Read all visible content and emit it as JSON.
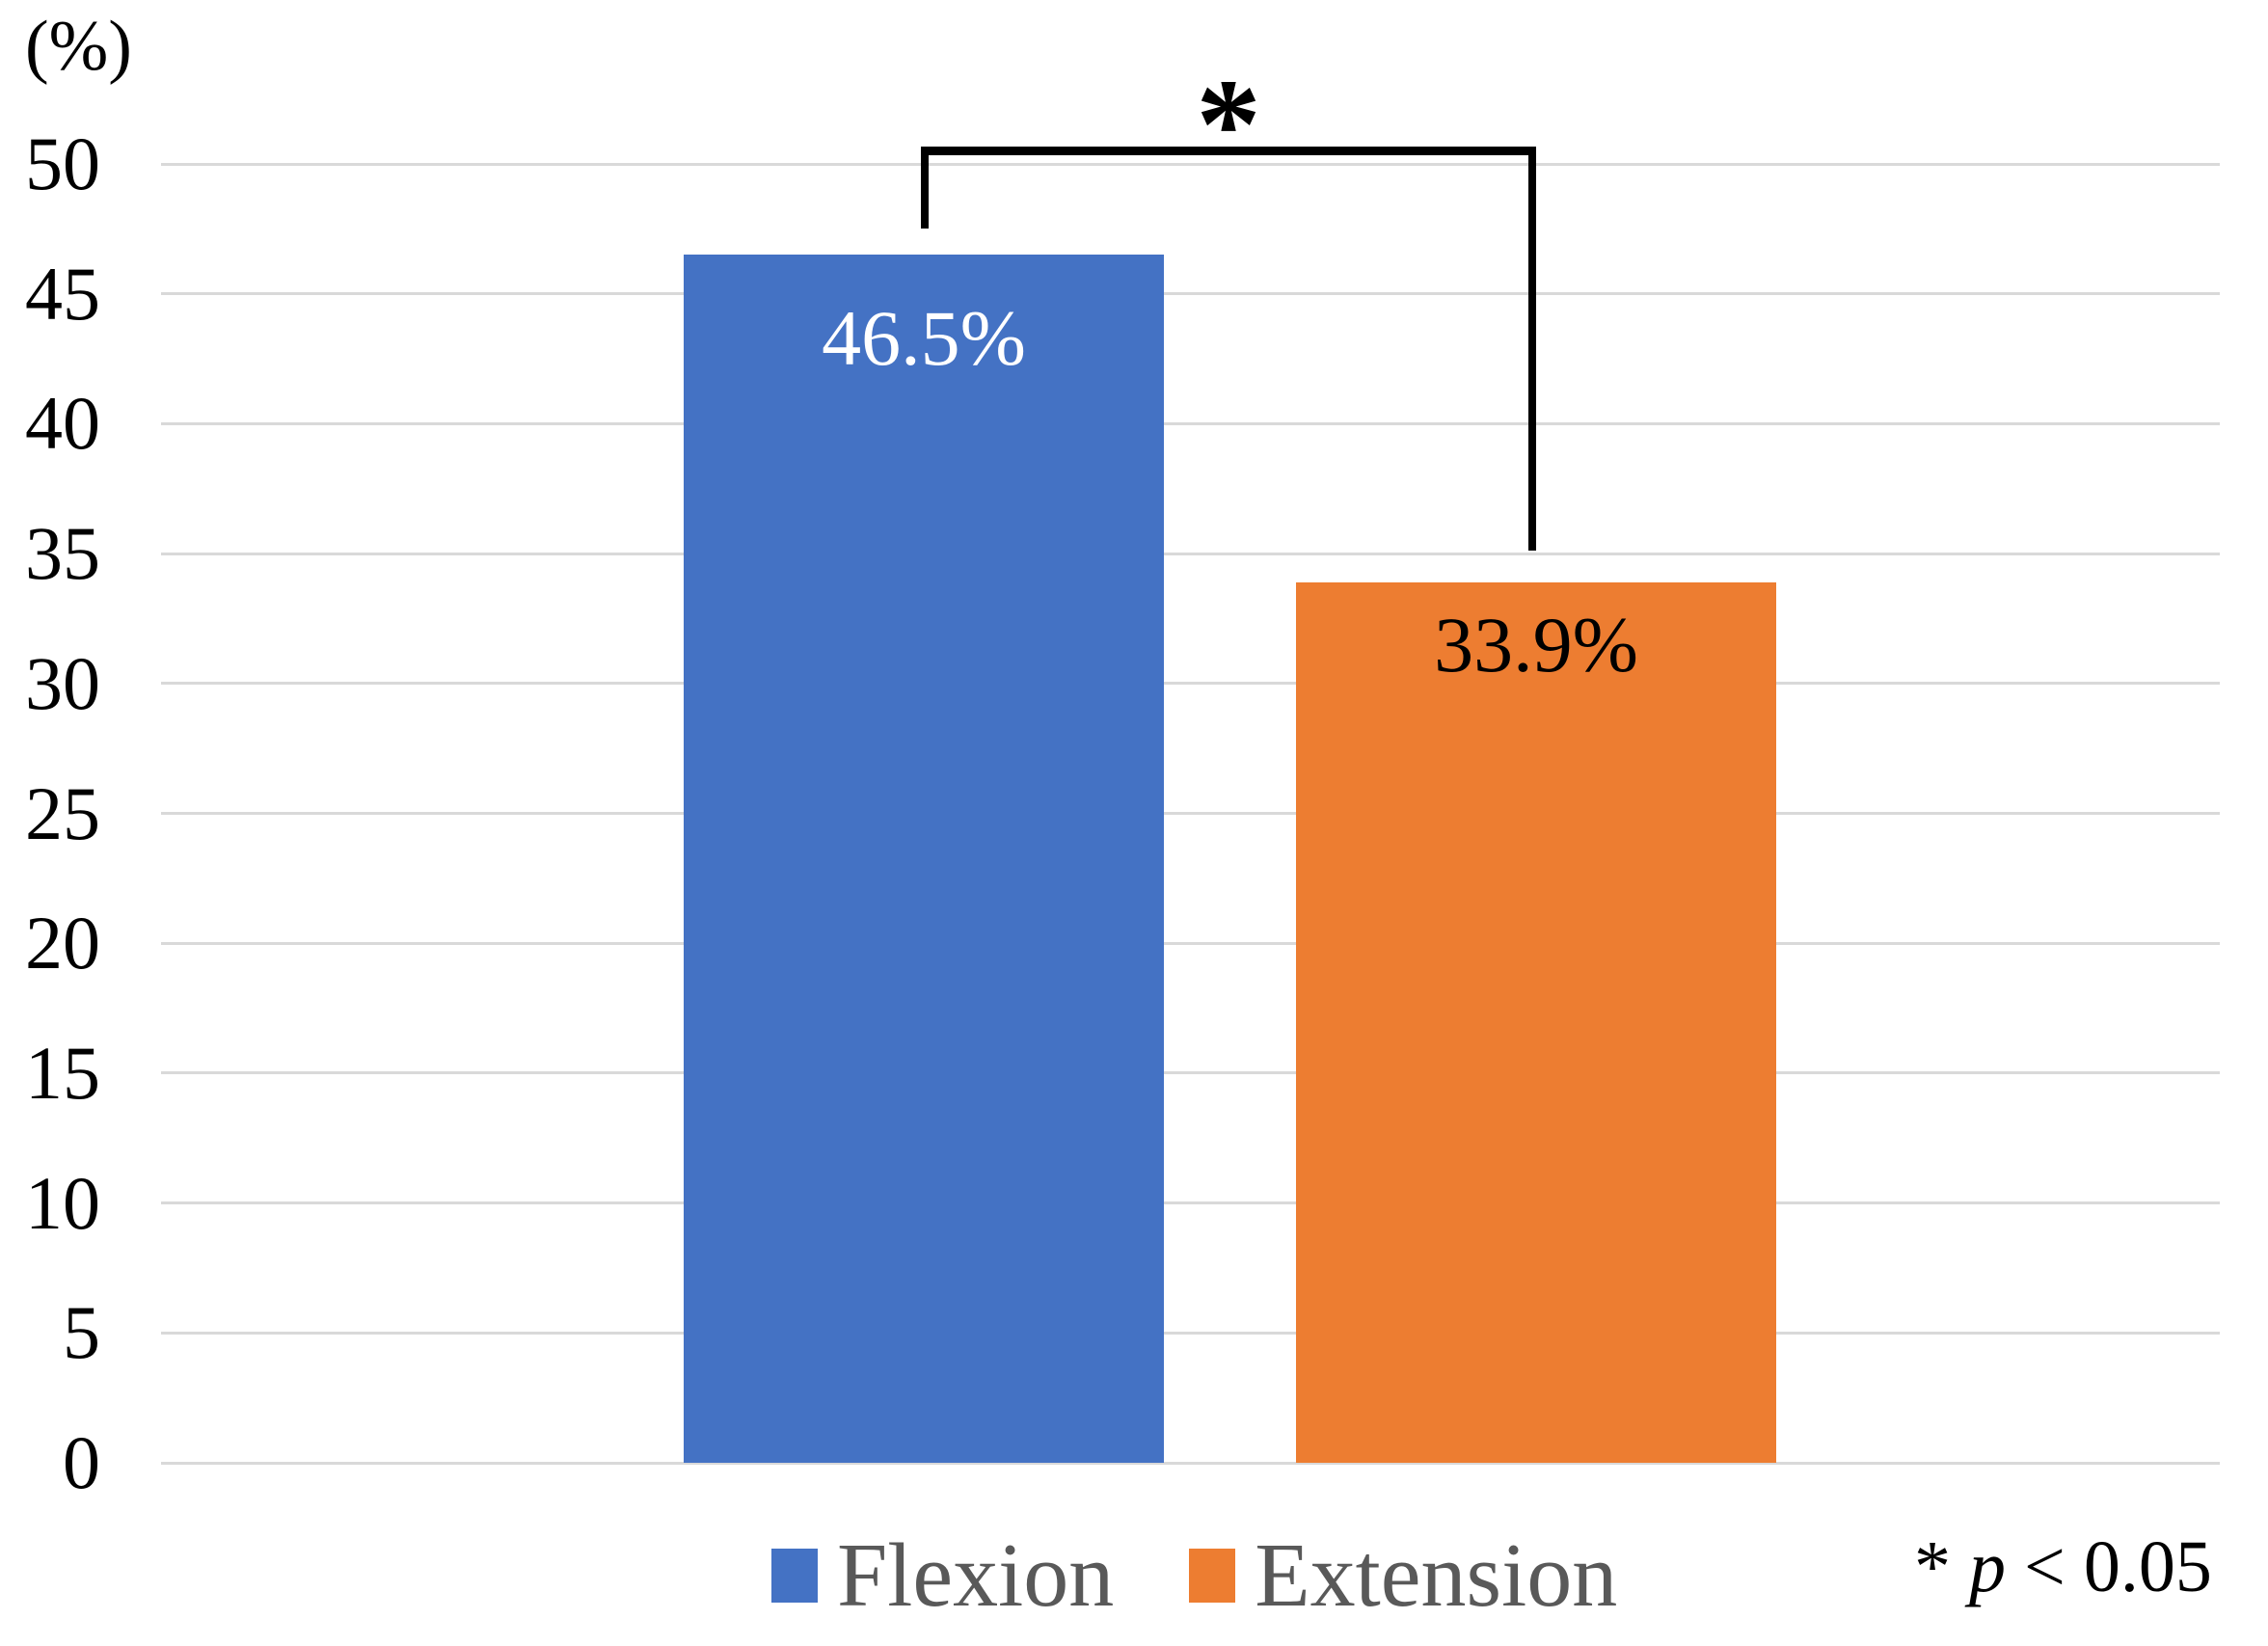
{
  "chart_data": {
    "type": "bar",
    "title": "",
    "xlabel": "",
    "ylabel": "(%)",
    "categories": [
      "Flexion",
      "Extension"
    ],
    "values": [
      46.5,
      33.9
    ],
    "value_labels": [
      "46.5%",
      "33.9%"
    ],
    "colors": [
      "#4472C4",
      "#ED7D31"
    ],
    "ylim": [
      0,
      50
    ],
    "yticks": [
      0,
      5,
      10,
      15,
      20,
      25,
      30,
      35,
      40,
      45,
      50
    ],
    "grid": true,
    "gridline_color": "#D9D9D9",
    "legend_position": "bottom",
    "legend_text_color": "#595959",
    "significance": {
      "symbol": "*",
      "between": [
        "Flexion",
        "Extension"
      ],
      "note_prefix": "* ",
      "note_variable": "p",
      "note_rest": " < 0.05"
    }
  }
}
